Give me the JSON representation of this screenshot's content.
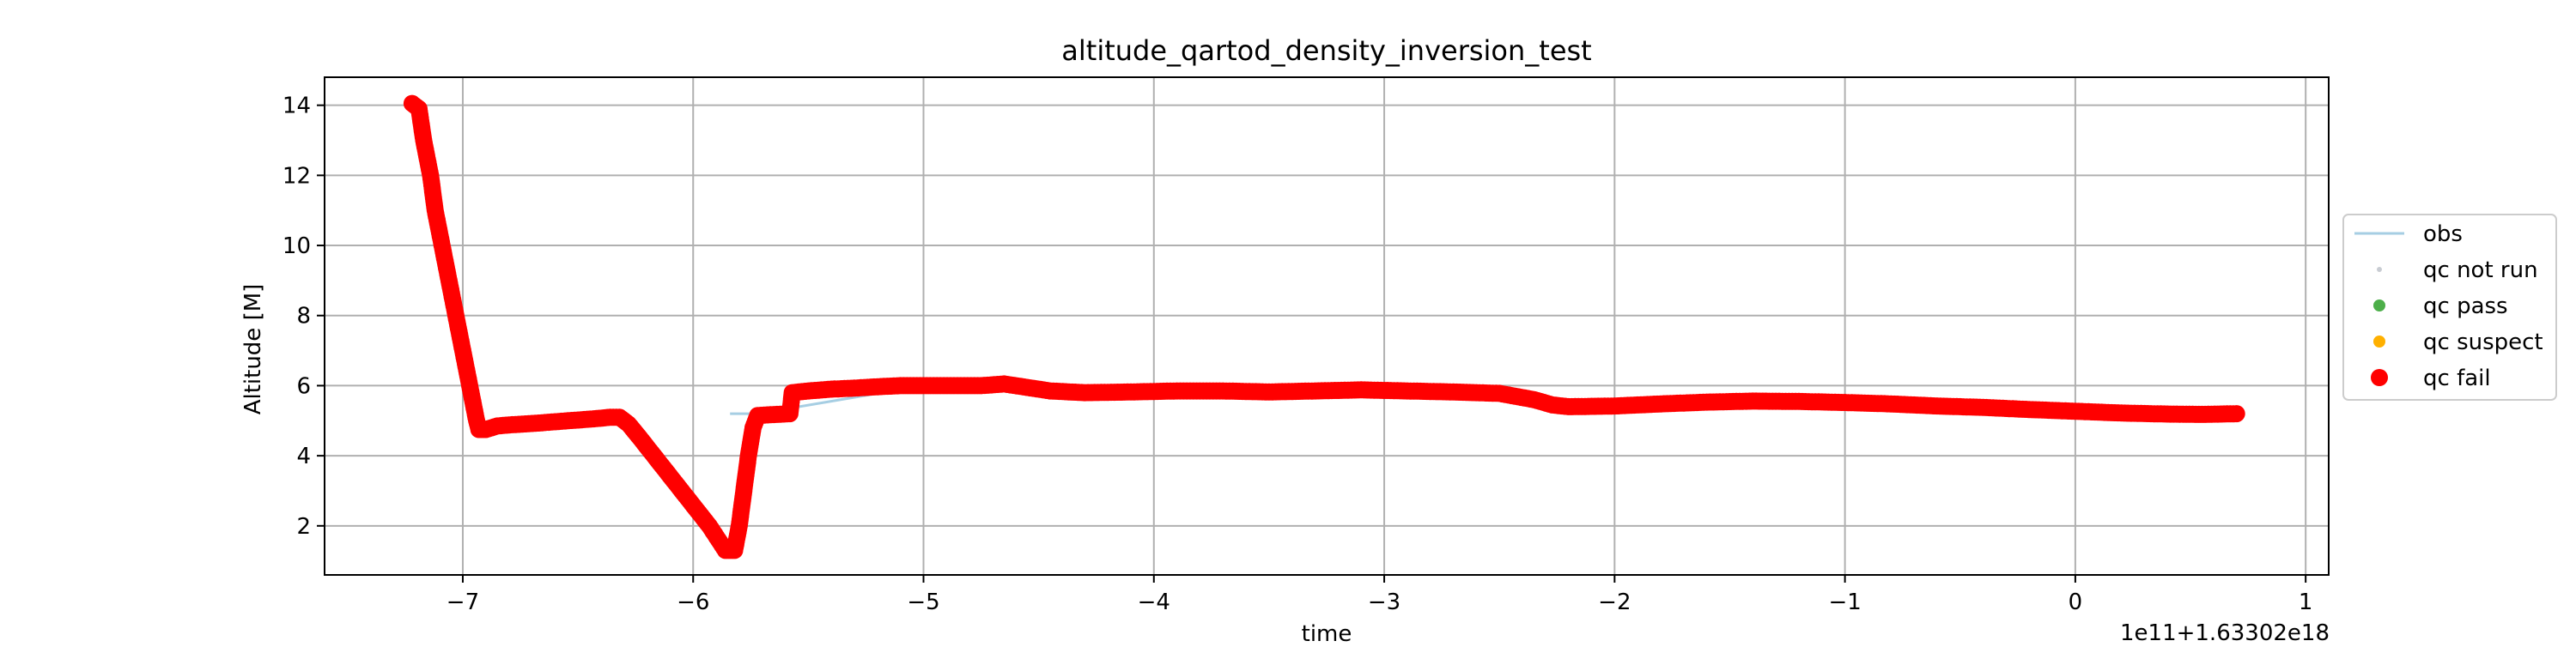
{
  "chart_data": {
    "type": "scatter",
    "title": "altitude_qartod_density_inversion_test",
    "xlabel": "time",
    "ylabel": "Altitude [M]",
    "x_offset_label": "1e11+1.63302e18",
    "xlim": [
      -7.6,
      1.1
    ],
    "ylim": [
      0.6,
      14.8
    ],
    "xticks": [
      -7,
      -6,
      -5,
      -4,
      -3,
      -2,
      -1,
      0,
      1
    ],
    "xtick_labels": [
      "−7",
      "−6",
      "−5",
      "−4",
      "−3",
      "−2",
      "−1",
      "0",
      "1"
    ],
    "yticks": [
      2,
      4,
      6,
      8,
      10,
      12,
      14
    ],
    "ytick_labels": [
      "2",
      "4",
      "6",
      "8",
      "10",
      "12",
      "14"
    ],
    "grid": true,
    "legend_position": "outside-right",
    "legend": [
      {
        "label": "obs",
        "kind": "line",
        "color": "#a6cee3"
      },
      {
        "label": "qc not run",
        "kind": "dot-small",
        "color": "#c8ccd2"
      },
      {
        "label": "qc pass",
        "kind": "dot",
        "color": "#4daf4a"
      },
      {
        "label": "qc suspect",
        "kind": "dot",
        "color": "#ffb000"
      },
      {
        "label": "qc fail",
        "kind": "dot-large",
        "color": "#ff0000"
      }
    ],
    "series": [
      {
        "name": "obs",
        "kind": "line",
        "color": "#a6cee3",
        "points": [
          [
            -5.84,
            5.2
          ],
          [
            -5.72,
            5.2
          ],
          [
            -5.0,
            6.0
          ],
          [
            -4.75,
            6.0
          ]
        ]
      },
      {
        "name": "qc fail",
        "kind": "scatter",
        "color": "#ff0000",
        "points": [
          [
            -7.22,
            14.05
          ],
          [
            -7.19,
            13.9
          ],
          [
            -7.17,
            13.0
          ],
          [
            -7.14,
            12.0
          ],
          [
            -7.12,
            11.0
          ],
          [
            -7.09,
            10.0
          ],
          [
            -7.06,
            9.0
          ],
          [
            -7.03,
            8.0
          ],
          [
            -7.0,
            7.0
          ],
          [
            -6.97,
            6.0
          ],
          [
            -6.94,
            5.0
          ],
          [
            -6.93,
            4.75
          ],
          [
            -6.9,
            4.75
          ],
          [
            -6.85,
            4.85
          ],
          [
            -6.8,
            4.88
          ],
          [
            -6.7,
            4.92
          ],
          [
            -6.6,
            4.97
          ],
          [
            -6.5,
            5.02
          ],
          [
            -6.42,
            5.06
          ],
          [
            -6.36,
            5.1
          ],
          [
            -6.32,
            5.1
          ],
          [
            -6.28,
            4.9
          ],
          [
            -6.23,
            4.5
          ],
          [
            -6.17,
            4.0
          ],
          [
            -6.11,
            3.5
          ],
          [
            -6.05,
            3.0
          ],
          [
            -5.99,
            2.5
          ],
          [
            -5.93,
            2.0
          ],
          [
            -5.89,
            1.6
          ],
          [
            -5.86,
            1.3
          ],
          [
            -5.82,
            1.3
          ],
          [
            -5.8,
            2.0
          ],
          [
            -5.78,
            3.0
          ],
          [
            -5.76,
            4.0
          ],
          [
            -5.74,
            4.8
          ],
          [
            -5.72,
            5.15
          ],
          [
            -5.58,
            5.2
          ],
          [
            -5.57,
            5.8
          ],
          [
            -5.5,
            5.85
          ],
          [
            -5.4,
            5.9
          ],
          [
            -5.3,
            5.93
          ],
          [
            -5.2,
            5.97
          ],
          [
            -5.1,
            6.0
          ],
          [
            -5.0,
            6.0
          ],
          [
            -4.75,
            6.0
          ],
          [
            -4.65,
            6.05
          ],
          [
            -4.55,
            5.95
          ],
          [
            -4.45,
            5.85
          ],
          [
            -4.3,
            5.8
          ],
          [
            -4.1,
            5.82
          ],
          [
            -3.9,
            5.85
          ],
          [
            -3.7,
            5.85
          ],
          [
            -3.5,
            5.82
          ],
          [
            -3.3,
            5.85
          ],
          [
            -3.1,
            5.88
          ],
          [
            -2.9,
            5.85
          ],
          [
            -2.7,
            5.82
          ],
          [
            -2.5,
            5.78
          ],
          [
            -2.35,
            5.6
          ],
          [
            -2.27,
            5.45
          ],
          [
            -2.2,
            5.4
          ],
          [
            -2.0,
            5.42
          ],
          [
            -1.8,
            5.48
          ],
          [
            -1.6,
            5.53
          ],
          [
            -1.4,
            5.56
          ],
          [
            -1.2,
            5.55
          ],
          [
            -1.0,
            5.52
          ],
          [
            -0.8,
            5.48
          ],
          [
            -0.6,
            5.42
          ],
          [
            -0.4,
            5.38
          ],
          [
            -0.2,
            5.32
          ],
          [
            0.0,
            5.27
          ],
          [
            0.2,
            5.22
          ],
          [
            0.4,
            5.19
          ],
          [
            0.55,
            5.18
          ],
          [
            0.7,
            5.2
          ]
        ]
      }
    ]
  }
}
